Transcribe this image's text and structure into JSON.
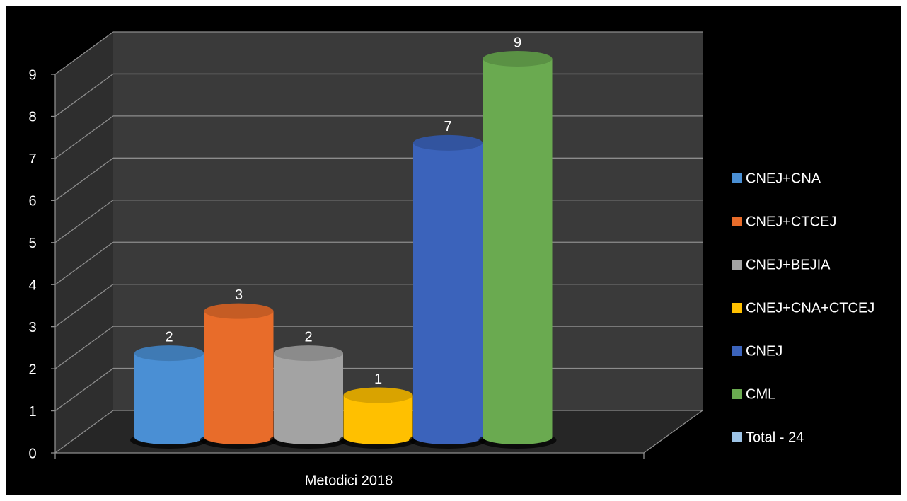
{
  "chart_data": {
    "type": "bar3d",
    "categories": [
      "Metodici 2018"
    ],
    "series": [
      {
        "name": "CNEJ+CNA",
        "color": "#4a8fd4",
        "values": [
          2
        ]
      },
      {
        "name": "CNEJ+CTCEJ",
        "color": "#e86c2a",
        "values": [
          3
        ]
      },
      {
        "name": "CNEJ+BEJIA",
        "color": "#a3a3a3",
        "values": [
          2
        ]
      },
      {
        "name": "CNEJ+CNA+CTCEJ",
        "color": "#ffc000",
        "values": [
          1
        ]
      },
      {
        "name": "CNEJ",
        "color": "#3b63bb",
        "values": [
          7
        ]
      },
      {
        "name": "CML",
        "color": "#6aaa50",
        "values": [
          9
        ]
      },
      {
        "name": "Total - 24",
        "color": "#9dc3e6",
        "values": [
          null
        ]
      }
    ],
    "ylim": [
      0,
      9
    ],
    "yticks": [
      0,
      1,
      2,
      3,
      4,
      5,
      6,
      7,
      8,
      9
    ],
    "grid": true,
    "legend": "right"
  }
}
